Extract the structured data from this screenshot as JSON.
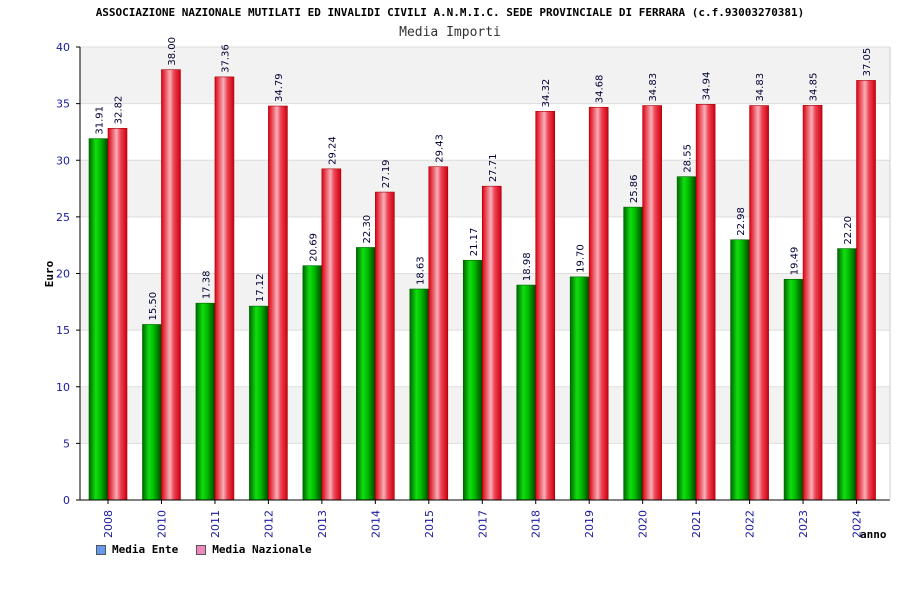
{
  "header": {
    "title": "ASSOCIAZIONE NAZIONALE MUTILATI ED INVALIDI CIVILI A.N.M.I.C. SEDE PROVINCIALE DI FERRARA (c.f.93003270381)",
    "subtitle": "Media Importi"
  },
  "legend": {
    "items": [
      {
        "label": "Media Ente",
        "color": "#6699ee"
      },
      {
        "label": "Media Nazionale",
        "color": "#ee88bb"
      }
    ]
  },
  "chart_data": {
    "type": "bar",
    "title": "Media Importi",
    "xlabel": "anno",
    "ylabel": "Euro",
    "ylim": [
      0,
      40
    ],
    "yticks": [
      0,
      5,
      10,
      15,
      20,
      25,
      30,
      35,
      40
    ],
    "categories": [
      "2008",
      "2010",
      "2011",
      "2012",
      "2013",
      "2014",
      "2015",
      "2017",
      "2018",
      "2019",
      "2020",
      "2021",
      "2022",
      "2023",
      "2024"
    ],
    "series": [
      {
        "name": "Media Ente",
        "color": "#00aa00",
        "values": [
          31.91,
          15.5,
          17.38,
          17.12,
          20.69,
          22.3,
          18.63,
          21.17,
          18.98,
          19.7,
          25.86,
          28.55,
          22.98,
          19.49,
          22.2
        ],
        "labels": [
          "31.91",
          "15.50",
          "17.38",
          "17.12",
          "20.69",
          "22.30",
          "18.63",
          "21.17",
          "18.98",
          "19.70",
          "25.86",
          "28.55",
          "22.98",
          "19.49",
          "22.20"
        ]
      },
      {
        "name": "Media Nazionale",
        "color": "#ee1122",
        "values": [
          32.82,
          38.0,
          37.36,
          34.79,
          29.24,
          27.19,
          29.43,
          27.71,
          34.32,
          34.68,
          34.83,
          34.94,
          34.83,
          34.85,
          37.05
        ],
        "labels": [
          "32.82",
          "38.00",
          "37.36",
          "34.79",
          "29.24",
          "27.19",
          "29.43",
          "27.71",
          "34.32",
          "34.68",
          "34.83",
          "34.94",
          "34.83",
          "34.85",
          "37.05"
        ]
      }
    ],
    "grid": true,
    "legend_position": "bottom-left"
  }
}
